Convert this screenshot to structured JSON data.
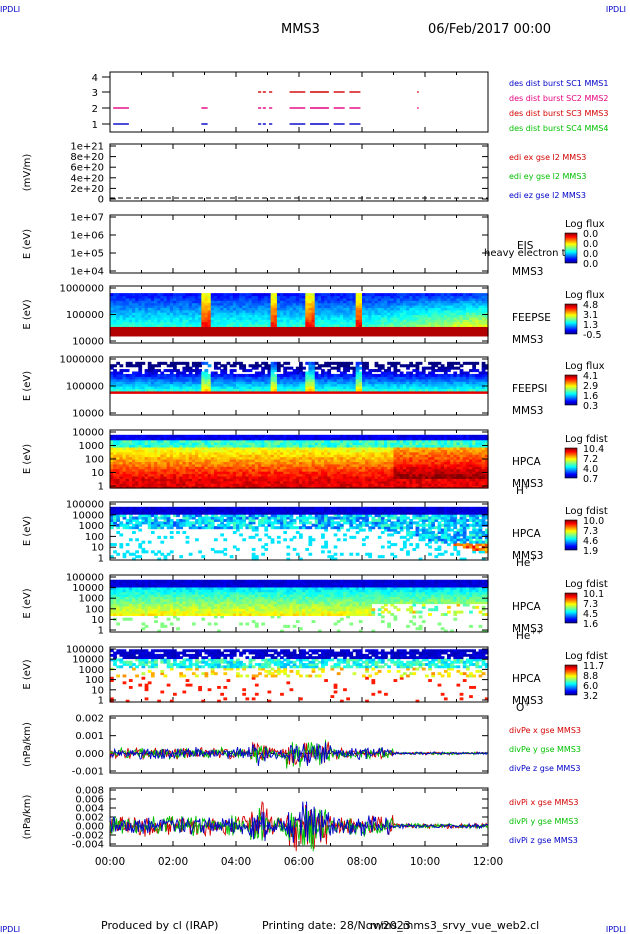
{
  "header": {
    "corner_tl": "IPDLI",
    "corner_tr": "IPDLI",
    "corner_bl": "IPDLI",
    "corner_br": "IPDLI",
    "title": "MMS3",
    "date": "06/Feb/2017 00:00"
  },
  "footer": {
    "produced": "Produced by cl (IRAP)",
    "printing": "Printing date: 28/Nov/2023",
    "file": "mms_mms3_srvy_vue_web2.cl"
  },
  "x_axis": {
    "ticks": [
      "00:00",
      "02:00",
      "04:00",
      "06:00",
      "08:00",
      "10:00",
      "12:00"
    ]
  },
  "colors": {
    "red": "#d40000",
    "magenta": "#e6007e",
    "green": "#00c000",
    "blue": "#0000c8"
  },
  "chart_data": [
    {
      "type": "scatter",
      "panel": "burst-intervals",
      "yticks": [
        "4",
        "3",
        "2",
        "1"
      ],
      "ylim": [
        0.5,
        4.5
      ],
      "legend": [
        {
          "label": "des dist burst SC1 MMS1",
          "color": "#0000c8"
        },
        {
          "label": "des dist burst SC2 MMS2",
          "color": "#e6007e"
        },
        {
          "label": "des dist burst SC3 MMS3",
          "color": "#d40000"
        },
        {
          "label": "des dist burst SC4 MMS4",
          "color": "#00c000"
        }
      ],
      "series": [
        {
          "name": "des dist burst SC1 MMS1",
          "level": 1,
          "intervals_h": [
            [
              0.1,
              0.6
            ],
            [
              2.9,
              3.1
            ],
            [
              4.7,
              4.8
            ],
            [
              4.85,
              4.95
            ],
            [
              5.05,
              5.15
            ],
            [
              5.7,
              6.2
            ],
            [
              6.35,
              6.95
            ],
            [
              7.1,
              7.45
            ],
            [
              7.6,
              7.95
            ]
          ]
        },
        {
          "name": "des dist burst SC2 MMS2",
          "level": 2,
          "intervals_h": [
            [
              0.1,
              0.6
            ],
            [
              2.9,
              3.1
            ],
            [
              4.7,
              4.8
            ],
            [
              4.85,
              4.95
            ],
            [
              5.05,
              5.15
            ],
            [
              5.7,
              6.2
            ],
            [
              6.35,
              6.95
            ],
            [
              7.1,
              7.45
            ],
            [
              7.6,
              7.95
            ],
            [
              9.75,
              9.8
            ]
          ]
        },
        {
          "name": "des dist burst SC3 MMS3",
          "level": 3,
          "intervals_h": [
            [
              4.7,
              4.8
            ],
            [
              4.85,
              4.95
            ],
            [
              5.05,
              5.15
            ],
            [
              5.7,
              6.2
            ],
            [
              6.35,
              6.95
            ],
            [
              7.1,
              7.45
            ],
            [
              7.6,
              7.95
            ],
            [
              9.75,
              9.8
            ]
          ]
        }
      ]
    },
    {
      "type": "line",
      "panel": "edi",
      "ylabel": "(mV/m)",
      "yticks": [
        "1e+21",
        "8e+20",
        "6e+20",
        "4e+20",
        "2e+20",
        "0"
      ],
      "ylim": [
        0,
        1e+21
      ],
      "legend": [
        {
          "label": "edi ex gse l2 MMS3",
          "color": "#d40000"
        },
        {
          "label": "edi ey gse l2 MMS3",
          "color": "#00c000"
        },
        {
          "label": "edi ez gse l2 MMS3",
          "color": "#0000c8"
        }
      ]
    },
    {
      "type": "heatmap",
      "panel": "eis",
      "ylabel": "E (eV)",
      "yticks": [
        "1e+07",
        "1e+06",
        "1e+05",
        "1e+04"
      ],
      "labels": [
        "EIS",
        "MMS3"
      ],
      "overlay": "heavy electron to",
      "colorbar_title": "Log flux",
      "colorbar_ticks": [
        "0.0",
        "0.0",
        "0.0",
        "0.0"
      ]
    },
    {
      "type": "heatmap",
      "panel": "feeps-e",
      "ylabel": "E (eV)",
      "yticks": [
        "1000000",
        "100000",
        "10000"
      ],
      "labels": [
        "FEEPSE",
        "MMS3"
      ],
      "colorbar_title": "Log flux",
      "colorbar_ticks": [
        "4.8",
        "3.1",
        "1.3",
        "-0.5"
      ]
    },
    {
      "type": "heatmap",
      "panel": "feeps-i",
      "ylabel": "E (eV)",
      "yticks": [
        "1000000",
        "100000",
        "10000"
      ],
      "labels": [
        "FEEPSI",
        "MMS3"
      ],
      "colorbar_title": "Log flux",
      "colorbar_ticks": [
        "4.1",
        "2.9",
        "1.6",
        "0.3"
      ]
    },
    {
      "type": "heatmap",
      "panel": "hpca-h",
      "ylabel": "E (eV)",
      "yticks": [
        "10000",
        "1000",
        "100",
        "10",
        "1"
      ],
      "labels": [
        "HPCA",
        "MMS3"
      ],
      "species": "H",
      "species_sup": "+",
      "colorbar_title": "Log fdist",
      "colorbar_ticks": [
        "10.4",
        "7.2",
        "4.0",
        "0.7"
      ]
    },
    {
      "type": "heatmap",
      "panel": "hpca-he",
      "ylabel": "E (eV)",
      "yticks": [
        "100000",
        "10000",
        "1000",
        "100",
        "10",
        "1"
      ],
      "labels": [
        "HPCA",
        "MMS3"
      ],
      "species": "He",
      "species_sup": "+",
      "colorbar_title": "Log fdist",
      "colorbar_ticks": [
        "10.0",
        "7.3",
        "4.6",
        "1.9"
      ]
    },
    {
      "type": "heatmap",
      "panel": "hpca-hepp",
      "ylabel": "E (eV)",
      "yticks": [
        "100000",
        "10000",
        "1000",
        "100",
        "10",
        "1"
      ],
      "labels": [
        "HPCA",
        "MMS3"
      ],
      "species": "He",
      "species_sup": "++",
      "colorbar_title": "Log fdist",
      "colorbar_ticks": [
        "10.1",
        "7.3",
        "4.5",
        "1.6"
      ]
    },
    {
      "type": "heatmap",
      "panel": "hpca-o",
      "ylabel": "E (eV)",
      "yticks": [
        "100000",
        "10000",
        "1000",
        "100",
        "10",
        "1"
      ],
      "labels": [
        "HPCA",
        "MMS3"
      ],
      "species": "O",
      "species_sup": "+",
      "colorbar_title": "Log fdist",
      "colorbar_ticks": [
        "11.7",
        "8.8",
        "6.0",
        "3.2"
      ]
    },
    {
      "type": "line",
      "panel": "divpe",
      "ylabel": "(nPa/km)",
      "yticks": [
        "0.002",
        "0.001",
        "0.000",
        "-0.001"
      ],
      "ylim": [
        -0.0015,
        0.0023
      ],
      "legend": [
        {
          "label": "divPe x gse MMS3",
          "color": "#d40000"
        },
        {
          "label": "divPe y gse MMS3",
          "color": "#00c000"
        },
        {
          "label": "divPe z gse MMS3",
          "color": "#0000c8"
        }
      ]
    },
    {
      "type": "line",
      "panel": "divpi",
      "ylabel": "(nPa/km)",
      "yticks": [
        "0.008",
        "0.006",
        "0.004",
        "0.002",
        "0.000",
        "-0.002",
        "-0.004"
      ],
      "ylim": [
        -0.005,
        0.009
      ],
      "legend": [
        {
          "label": "divPi x gse MMS3",
          "color": "#d40000"
        },
        {
          "label": "divPi y gse MMS3",
          "color": "#00c000"
        },
        {
          "label": "divPi z gse MMS3",
          "color": "#0000c8"
        }
      ]
    }
  ]
}
